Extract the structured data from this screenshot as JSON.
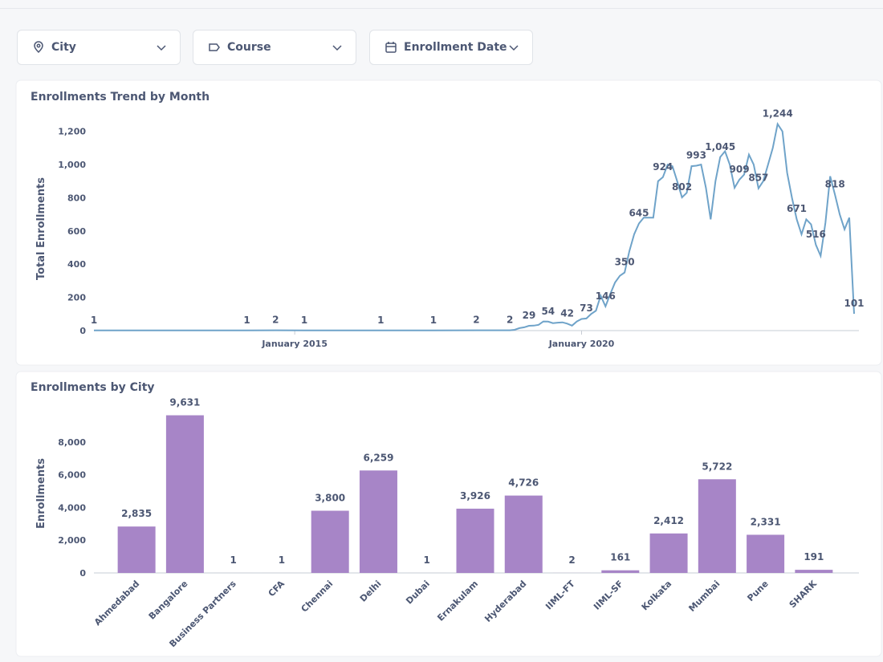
{
  "filters": [
    "City",
    "Course",
    "Enrollment Date"
  ],
  "chart_data": [
    {
      "type": "line",
      "title": "Enrollments Trend by Month",
      "y_label": "Total Enrollments",
      "color": "#6fa3c9",
      "x": [
        "2011-07",
        "2014-03",
        "2014-09",
        "2015-03",
        "2016-07",
        "2017-06",
        "2018-03",
        "2018-10",
        "2018-11",
        "2018-12",
        "2019-01",
        "2019-02",
        "2019-03",
        "2019-04",
        "2019-05",
        "2019-06",
        "2019-07",
        "2019-08",
        "2019-09",
        "2019-10",
        "2019-11",
        "2019-12",
        "2020-01",
        "2020-02",
        "2020-03",
        "2020-04",
        "2020-05",
        "2020-06",
        "2020-07",
        "2020-08",
        "2020-09",
        "2020-10",
        "2020-11",
        "2020-12",
        "2021-01",
        "2021-02",
        "2021-03",
        "2021-04",
        "2021-05",
        "2021-06",
        "2021-07",
        "2021-08",
        "2021-09",
        "2021-10",
        "2021-11",
        "2021-12",
        "2022-01",
        "2022-02",
        "2022-03",
        "2022-04",
        "2022-05",
        "2022-06",
        "2022-07",
        "2022-08",
        "2022-09",
        "2022-10",
        "2022-11",
        "2022-12",
        "2023-01",
        "2023-02",
        "2023-03",
        "2023-04",
        "2023-05",
        "2023-06",
        "2023-07",
        "2023-08",
        "2023-09",
        "2023-10",
        "2023-11",
        "2023-12",
        "2024-01",
        "2024-02",
        "2024-03",
        "2024-04",
        "2024-05",
        "2024-06",
        "2024-07",
        "2024-08",
        "2024-09",
        "2024-10"
      ],
      "values": [
        1,
        1,
        2,
        1,
        1,
        1,
        2,
        2,
        5,
        15,
        20,
        29,
        30,
        35,
        55,
        54,
        45,
        48,
        50,
        42,
        30,
        55,
        70,
        73,
        100,
        120,
        210,
        146,
        220,
        290,
        330,
        350,
        480,
        580,
        645,
        680,
        680,
        680,
        900,
        924,
        1000,
        990,
        900,
        802,
        830,
        990,
        993,
        1000,
        860,
        670,
        900,
        1045,
        1080,
        1000,
        860,
        909,
        940,
        1060,
        1000,
        857,
        900,
        1000,
        1100,
        1244,
        1200,
        950,
        800,
        671,
        580,
        670,
        640,
        516,
        450,
        650,
        930,
        818,
        700,
        610,
        680,
        101
      ],
      "value_labels": [
        "1",
        "1",
        "2",
        "1",
        "1",
        "1",
        "2",
        "2",
        null,
        null,
        null,
        "29",
        null,
        null,
        null,
        "54",
        null,
        null,
        null,
        "42",
        null,
        null,
        null,
        "73",
        null,
        null,
        null,
        "146",
        null,
        null,
        null,
        "350",
        null,
        null,
        "645",
        null,
        null,
        null,
        null,
        "924",
        null,
        null,
        null,
        "802",
        null,
        null,
        "993",
        null,
        null,
        null,
        null,
        "1,045",
        null,
        null,
        null,
        "909",
        null,
        null,
        null,
        "857",
        null,
        null,
        null,
        "1,244",
        null,
        null,
        null,
        "671",
        null,
        null,
        null,
        "516",
        null,
        null,
        null,
        "818",
        null,
        null,
        null,
        "101"
      ],
      "xlim": [
        "2011-07",
        "2024-10"
      ],
      "xticks": [
        {
          "value": "2015-01",
          "label": "January 2015"
        },
        {
          "value": "2020-01",
          "label": "January 2020"
        }
      ],
      "ylim": [
        0,
        1300
      ],
      "yticks": [
        0,
        200,
        400,
        600,
        800,
        {
          "value": 1000,
          "label": "1,000"
        },
        {
          "value": 1200,
          "label": "1,200"
        }
      ]
    },
    {
      "type": "bar",
      "title": "Enrollments by City",
      "y_label": "Enrollments",
      "color": "#a785c7",
      "categories": [
        "Ahmedabad",
        "Bangalore",
        "Business Partners",
        "CFA",
        "Chennai",
        "Delhi",
        "Dubai",
        "Ernakulam",
        "Hyderabad",
        "IIML-FT",
        "IIML-SF",
        "Kolkata",
        "Mumbai",
        "Pune",
        "SHARK"
      ],
      "values": [
        2835,
        9631,
        1,
        1,
        3800,
        6259,
        1,
        3926,
        4726,
        2,
        161,
        2412,
        5722,
        2331,
        191
      ],
      "value_labels": [
        "2,835",
        "9,631",
        "1",
        "1",
        "3,800",
        "6,259",
        "1",
        "3,926",
        "4,726",
        "2",
        "161",
        "2,412",
        "5,722",
        "2,331",
        "191"
      ],
      "ylim": [
        0,
        10000
      ],
      "yticks": [
        0,
        {
          "value": 2000,
          "label": "2,000"
        },
        {
          "value": 4000,
          "label": "4,000"
        },
        {
          "value": 6000,
          "label": "6,000"
        },
        {
          "value": 8000,
          "label": "8,000"
        }
      ]
    }
  ]
}
